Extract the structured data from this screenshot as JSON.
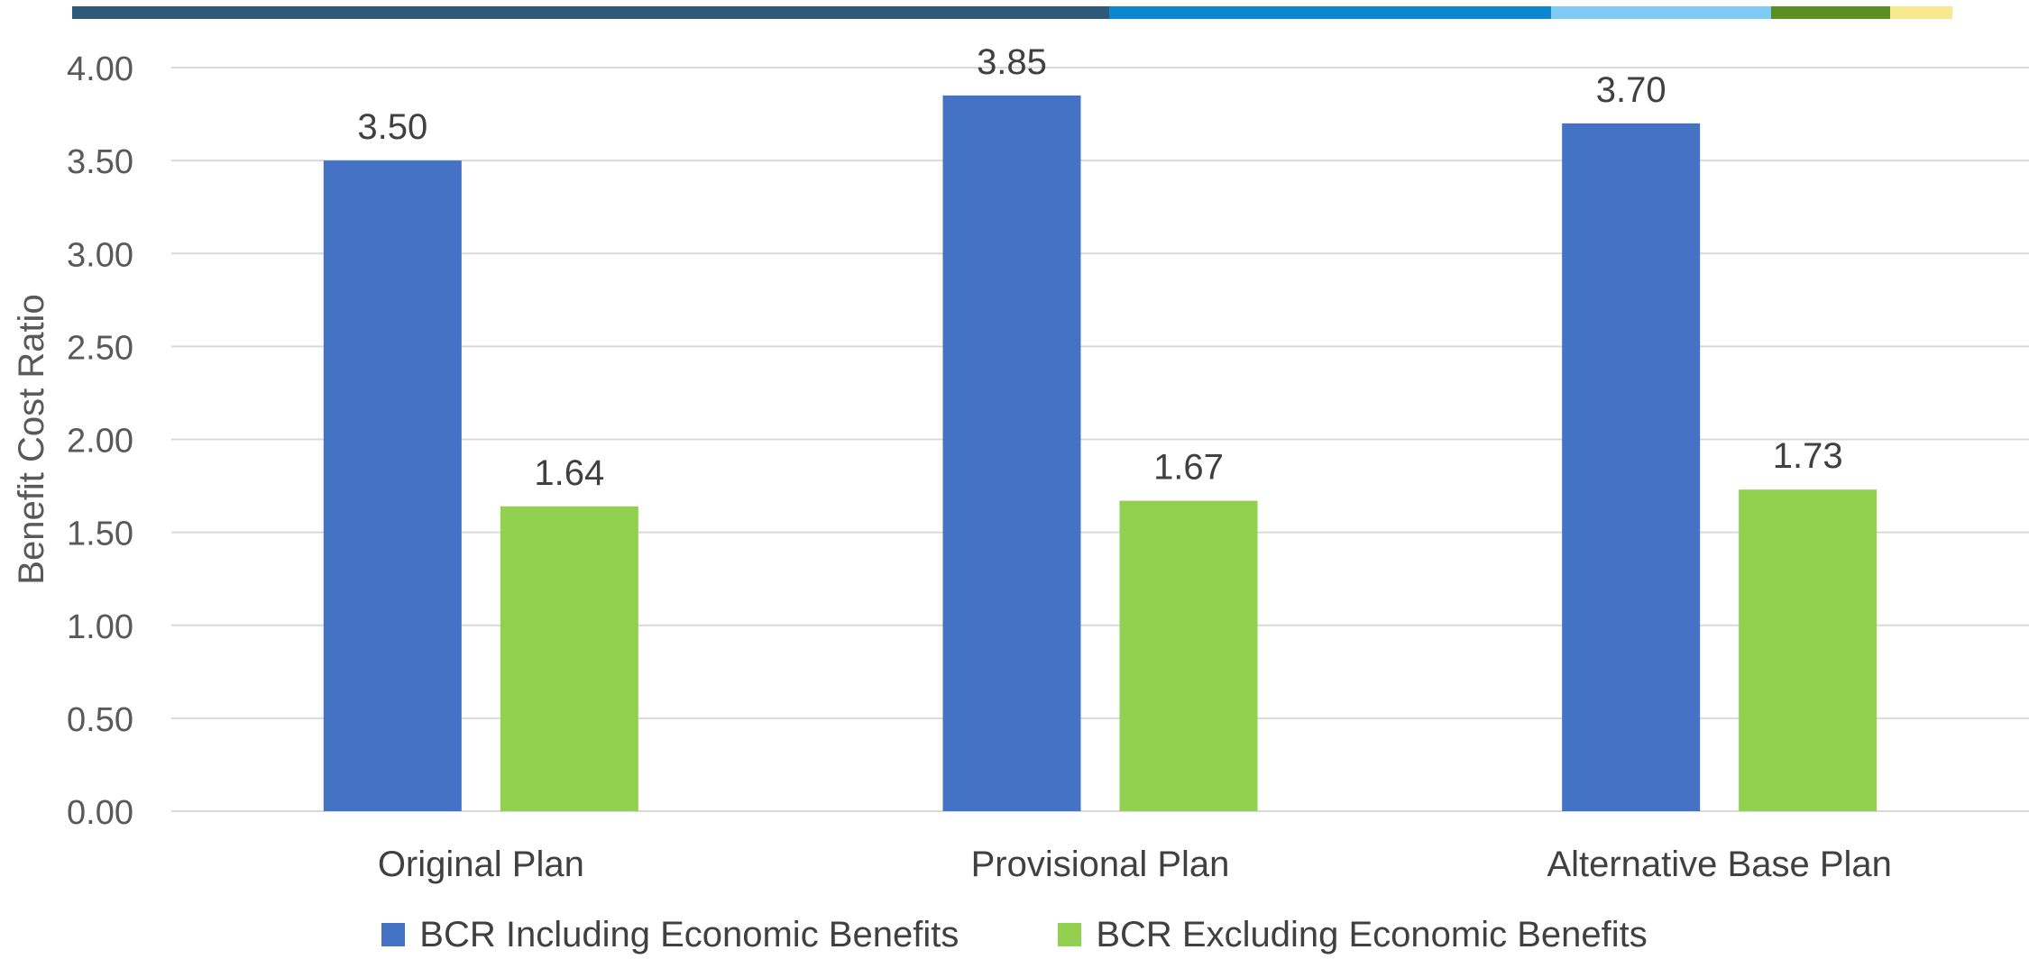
{
  "chart_data": {
    "type": "bar",
    "categories": [
      "Original Plan",
      "Provisional Plan",
      "Alternative Base Plan"
    ],
    "series": [
      {
        "name": "BCR Including Economic Benefits",
        "values": [
          3.5,
          3.85,
          3.7
        ],
        "color": "#4472C4"
      },
      {
        "name": "BCR Excluding Economic Benefits",
        "values": [
          1.64,
          1.67,
          1.73
        ],
        "color": "#92D050"
      }
    ],
    "ylabel": "Benefit Cost Ratio",
    "ylim": [
      0,
      4
    ],
    "yticks": [
      0.0,
      0.5,
      1.0,
      1.5,
      2.0,
      2.5,
      3.0,
      3.5,
      4.0
    ],
    "tick_decimals": 2,
    "label_decimals": 2,
    "grid": true,
    "legend": "bottom",
    "axis_text_color": "#595959",
    "label_text_color": "#404040",
    "grid_color": "#D9D9D9"
  },
  "decor": {
    "stripe": [
      {
        "color": "#2E5A7A",
        "weight": 1150
      },
      {
        "color": "#0B86D0",
        "weight": 490
      },
      {
        "color": "#7FCBF5",
        "weight": 244
      },
      {
        "color": "#5B8F22",
        "weight": 132
      },
      {
        "color": "#F7E98E",
        "weight": 69
      }
    ]
  }
}
